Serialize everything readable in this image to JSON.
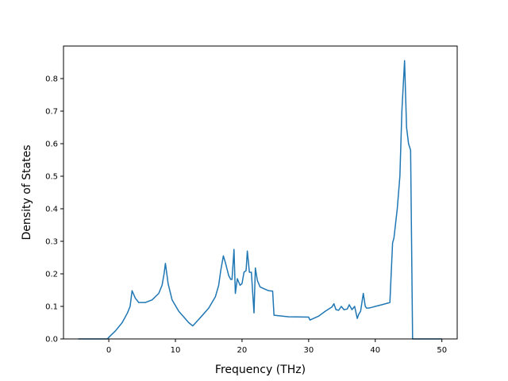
{
  "chart_data": {
    "type": "line",
    "title": "",
    "xlabel": "Frequency (THz)",
    "ylabel": "Density of States",
    "xlim": [
      -6.8,
      52.3
    ],
    "ylim": [
      0.0,
      0.9
    ],
    "x_ticks": [
      0,
      10,
      20,
      30,
      40,
      50
    ],
    "x_tick_labels": [
      "0",
      "10",
      "20",
      "30",
      "40",
      "50"
    ],
    "y_ticks": [
      0.0,
      0.1,
      0.2,
      0.3,
      0.4,
      0.5,
      0.6,
      0.7,
      0.8
    ],
    "y_tick_labels": [
      "0.0",
      "0.1",
      "0.2",
      "0.3",
      "0.4",
      "0.5",
      "0.6",
      "0.7",
      "0.8"
    ],
    "grid": false,
    "legend": "none",
    "series": [
      {
        "color": "#1f77b4",
        "x": [
          -4.6,
          -0.2,
          0.0,
          1.0,
          2.0,
          2.8,
          3.2,
          3.5,
          4.0,
          4.5,
          5.5,
          6.5,
          7.5,
          8.0,
          8.3,
          8.5,
          8.9,
          9.5,
          10.5,
          12.0,
          12.6,
          13.5,
          15.0,
          16.0,
          16.5,
          16.8,
          17.2,
          17.5,
          18.0,
          18.3,
          18.5,
          18.8,
          19.0,
          19.3,
          19.7,
          20.0,
          20.3,
          20.6,
          20.8,
          21.1,
          21.4,
          21.8,
          22.0,
          22.3,
          22.7,
          23.2,
          24.0,
          24.6,
          24.8,
          27.0,
          30.0,
          30.2,
          31.5,
          32.5,
          33.5,
          33.8,
          34.1,
          34.5,
          34.9,
          35.3,
          35.8,
          36.1,
          36.5,
          36.9,
          37.3,
          37.5,
          37.8,
          38.2,
          38.5,
          38.7,
          39.0,
          39.5,
          40.0,
          41.0,
          42.2,
          42.6,
          42.8,
          43.3,
          43.7,
          44.0,
          44.4,
          44.7,
          45.0,
          45.3,
          45.6,
          45.7,
          47.5,
          50.0
        ],
        "y": [
          0.0,
          0.0,
          0.005,
          0.025,
          0.05,
          0.08,
          0.1,
          0.148,
          0.125,
          0.112,
          0.112,
          0.12,
          0.14,
          0.165,
          0.2,
          0.232,
          0.17,
          0.12,
          0.085,
          0.05,
          0.04,
          0.06,
          0.095,
          0.13,
          0.165,
          0.21,
          0.255,
          0.235,
          0.195,
          0.183,
          0.183,
          0.275,
          0.14,
          0.185,
          0.165,
          0.17,
          0.205,
          0.21,
          0.27,
          0.205,
          0.205,
          0.08,
          0.218,
          0.18,
          0.16,
          0.155,
          0.148,
          0.147,
          0.073,
          0.068,
          0.067,
          0.058,
          0.07,
          0.085,
          0.098,
          0.108,
          0.09,
          0.088,
          0.1,
          0.09,
          0.092,
          0.105,
          0.09,
          0.1,
          0.063,
          0.075,
          0.085,
          0.14,
          0.1,
          0.095,
          0.095,
          0.097,
          0.1,
          0.105,
          0.112,
          0.295,
          0.31,
          0.4,
          0.5,
          0.7,
          0.855,
          0.65,
          0.6,
          0.58,
          0.0,
          0.0,
          0.0,
          0.0
        ]
      }
    ]
  }
}
